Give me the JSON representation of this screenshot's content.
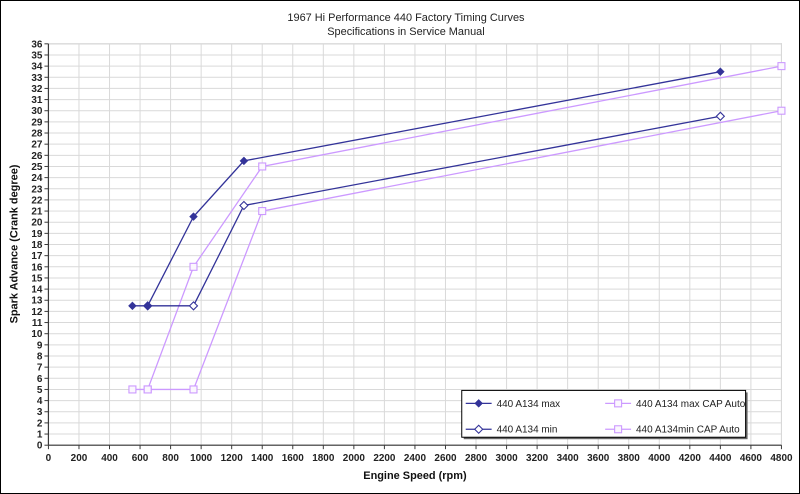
{
  "chart_data": {
    "type": "line",
    "title": "1967 Hi Performance 440 Factory Timing Curves",
    "subtitle": "Specifications in Service Manual",
    "xlabel": "Engine Speed (rpm)",
    "ylabel": "Spark Advance (Crank degree)",
    "xlim": [
      0,
      4800
    ],
    "xtick_step": 200,
    "ylim": [
      0,
      36
    ],
    "ytick_step": 1,
    "grid": true,
    "legend_position": "inside-bottom-right",
    "series": [
      {
        "name": "440  A134 max",
        "color": "#333399",
        "marker": "diamond-filled",
        "points": [
          [
            550,
            12.5
          ],
          [
            650,
            12.5
          ],
          [
            950,
            20.5
          ],
          [
            1280,
            25.5
          ],
          [
            4400,
            33.5
          ]
        ]
      },
      {
        "name": "440 A134 max CAP Auto",
        "color": "#cc99ff",
        "marker": "square-open",
        "points": [
          [
            550,
            5
          ],
          [
            650,
            5
          ],
          [
            950,
            16
          ],
          [
            1400,
            25
          ],
          [
            4800,
            34
          ]
        ]
      },
      {
        "name": "440  A134 min",
        "color": "#333399",
        "marker": "diamond-open",
        "points": [
          [
            650,
            12.5
          ],
          [
            950,
            12.5
          ],
          [
            1280,
            21.5
          ],
          [
            4400,
            29.5
          ]
        ]
      },
      {
        "name": "440 A134min  CAP Auto",
        "color": "#cc99ff",
        "marker": "square-open",
        "points": [
          [
            650,
            5
          ],
          [
            950,
            5
          ],
          [
            1400,
            21
          ],
          [
            4800,
            30
          ]
        ]
      }
    ],
    "colors": {
      "gridline": "#d9d9d9",
      "axis": "#3a3a3a",
      "plot_border": "#b8b8b8",
      "navy_series": "#333399",
      "violet_series": "#cc99ff",
      "legend_border": "#000000",
      "legend_shadow": "#666666",
      "background": "#ffffff"
    }
  }
}
